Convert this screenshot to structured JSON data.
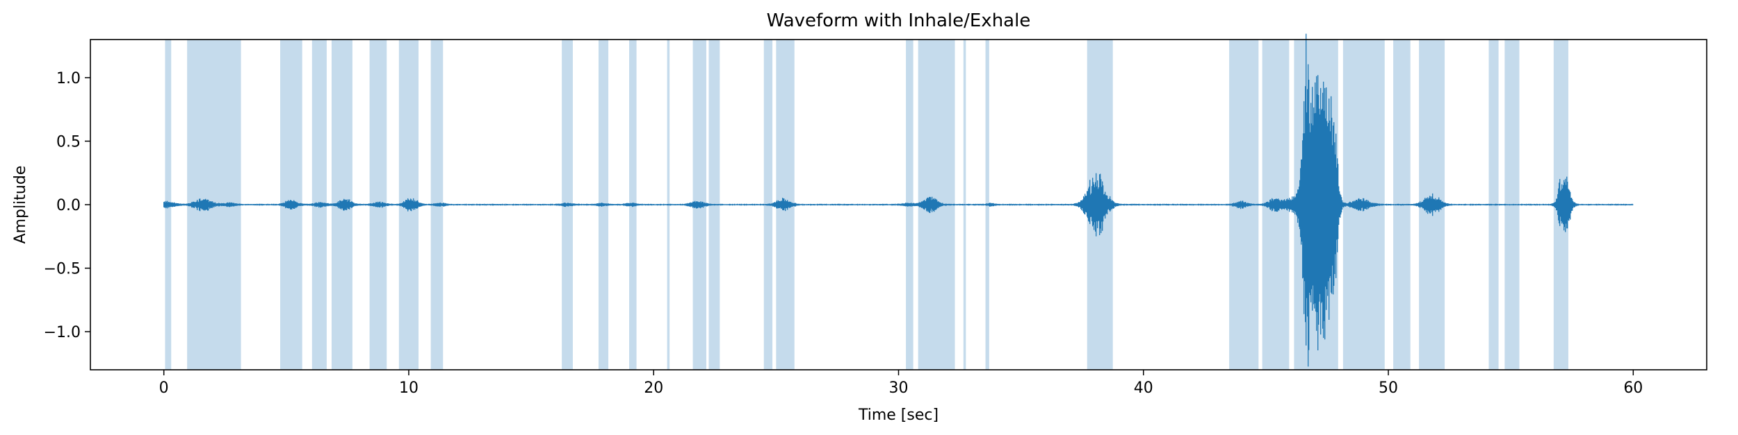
{
  "chart_data": {
    "type": "line",
    "title": "Waveform with Inhale/Exhale",
    "xlabel": "Time [sec]",
    "ylabel": "Amplitude",
    "xlim": [
      -3,
      63
    ],
    "ylim": [
      -1.3,
      1.3
    ],
    "xticks": [
      0,
      10,
      20,
      30,
      40,
      50,
      60
    ],
    "yticks": [
      -1.0,
      -0.5,
      0.0,
      0.5,
      1.0
    ],
    "xtick_labels": [
      "0",
      "10",
      "20",
      "30",
      "40",
      "50",
      "60"
    ],
    "ytick_labels": [
      "−1.0",
      "−0.5",
      "0.0",
      "0.5",
      "1.0"
    ],
    "grid": false,
    "colors": {
      "line": "#1f77b4",
      "band": "#a6c8e2"
    },
    "series": [
      {
        "duration": 60,
        "events": [
          {
            "t": 0.0,
            "w": 0.25,
            "a": 0.02
          },
          {
            "t": 0.3,
            "w": 0.3,
            "a": 0.015
          },
          {
            "t": 1.6,
            "w": 0.45,
            "a": 0.05
          },
          {
            "t": 2.7,
            "w": 0.3,
            "a": 0.015
          },
          {
            "t": 5.2,
            "w": 0.3,
            "a": 0.04
          },
          {
            "t": 6.4,
            "w": 0.3,
            "a": 0.02
          },
          {
            "t": 7.4,
            "w": 0.3,
            "a": 0.05
          },
          {
            "t": 8.8,
            "w": 0.3,
            "a": 0.02
          },
          {
            "t": 10.1,
            "w": 0.3,
            "a": 0.06
          },
          {
            "t": 11.3,
            "w": 0.25,
            "a": 0.015
          },
          {
            "t": 16.5,
            "w": 0.3,
            "a": 0.012
          },
          {
            "t": 17.9,
            "w": 0.25,
            "a": 0.012
          },
          {
            "t": 19.1,
            "w": 0.25,
            "a": 0.012
          },
          {
            "t": 21.8,
            "w": 0.35,
            "a": 0.03
          },
          {
            "t": 25.3,
            "w": 0.35,
            "a": 0.05
          },
          {
            "t": 30.4,
            "w": 0.3,
            "a": 0.012
          },
          {
            "t": 31.3,
            "w": 0.35,
            "a": 0.07
          },
          {
            "t": 33.8,
            "w": 0.2,
            "a": 0.01
          },
          {
            "t": 38.1,
            "w": 0.45,
            "a": 0.27
          },
          {
            "t": 44.0,
            "w": 0.3,
            "a": 0.03
          },
          {
            "t": 45.4,
            "w": 0.35,
            "a": 0.05
          },
          {
            "t": 46.2,
            "w": 0.4,
            "a": 0.08
          },
          {
            "t": 46.65,
            "w": 0.2,
            "a": 1.17
          },
          {
            "t": 46.9,
            "w": 0.2,
            "a": 0.9
          },
          {
            "t": 47.2,
            "w": 0.2,
            "a": 1.08
          },
          {
            "t": 47.5,
            "w": 0.2,
            "a": 1.05
          },
          {
            "t": 47.8,
            "w": 0.2,
            "a": 0.7
          },
          {
            "t": 48.9,
            "w": 0.45,
            "a": 0.05
          },
          {
            "t": 51.8,
            "w": 0.4,
            "a": 0.09
          },
          {
            "t": 57.2,
            "w": 0.25,
            "a": 0.33
          }
        ]
      }
    ],
    "bands": [
      [
        0.05,
        0.3
      ],
      [
        0.95,
        3.15
      ],
      [
        4.75,
        5.65
      ],
      [
        6.05,
        6.65
      ],
      [
        6.85,
        7.7
      ],
      [
        8.4,
        9.1
      ],
      [
        9.6,
        10.4
      ],
      [
        10.9,
        11.4
      ],
      [
        16.25,
        16.7
      ],
      [
        17.75,
        18.15
      ],
      [
        19.0,
        19.3
      ],
      [
        20.55,
        20.65
      ],
      [
        21.6,
        22.15
      ],
      [
        22.25,
        22.7
      ],
      [
        24.5,
        24.85
      ],
      [
        25.0,
        25.75
      ],
      [
        30.3,
        30.6
      ],
      [
        30.8,
        32.3
      ],
      [
        32.65,
        32.75
      ],
      [
        33.55,
        33.7
      ],
      [
        37.7,
        38.75
      ],
      [
        43.5,
        44.7
      ],
      [
        44.85,
        45.95
      ],
      [
        46.15,
        47.95
      ],
      [
        48.15,
        49.85
      ],
      [
        50.2,
        50.9
      ],
      [
        51.25,
        52.3
      ],
      [
        54.1,
        54.5
      ],
      [
        54.75,
        55.35
      ],
      [
        56.75,
        57.35
      ]
    ]
  }
}
